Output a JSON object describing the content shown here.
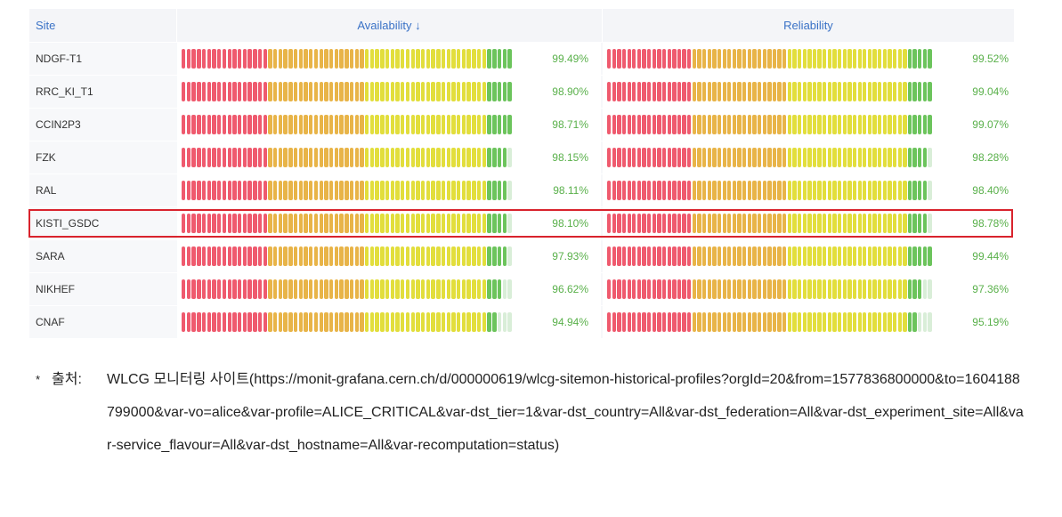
{
  "table": {
    "headers": {
      "site": "Site",
      "availability": "Availability",
      "sort_arrow": "↓",
      "reliability": "Reliability"
    },
    "colors": {
      "red": "#ef5a6e",
      "orange": "#e8b448",
      "yellow": "#e2de3c",
      "green": "#6cc45c",
      "empty": "#d9eed8",
      "value": "#59b04a",
      "highlight": "#d9232d",
      "header_text": "#3a72c6"
    },
    "rows": [
      {
        "site": "NDGF-T1",
        "availability": "99.49%",
        "reliability": "99.52%",
        "av_fill": 1.0,
        "re_fill": 1.0
      },
      {
        "site": "RRC_KI_T1",
        "availability": "98.90%",
        "reliability": "99.04%",
        "av_fill": 1.0,
        "re_fill": 1.0
      },
      {
        "site": "CCIN2P3",
        "availability": "98.71%",
        "reliability": "99.07%",
        "av_fill": 1.0,
        "re_fill": 1.0
      },
      {
        "site": "FZK",
        "availability": "98.15%",
        "reliability": "98.28%",
        "av_fill": 0.98,
        "re_fill": 0.98
      },
      {
        "site": "RAL",
        "availability": "98.11%",
        "reliability": "98.40%",
        "av_fill": 0.98,
        "re_fill": 0.98
      },
      {
        "site": "KISTI_GSDC",
        "availability": "98.10%",
        "reliability": "98.78%",
        "av_fill": 0.98,
        "re_fill": 0.98,
        "highlighted": true
      },
      {
        "site": "SARA",
        "availability": "97.93%",
        "reliability": "99.44%",
        "av_fill": 0.98,
        "re_fill": 1.0
      },
      {
        "site": "NIKHEF",
        "availability": "96.62%",
        "reliability": "97.36%",
        "av_fill": 0.97,
        "re_fill": 0.97
      },
      {
        "site": "CNAF",
        "availability": "94.94%",
        "reliability": "95.19%",
        "av_fill": 0.95,
        "re_fill": 0.95
      }
    ]
  },
  "note": {
    "star": "*",
    "label": "출처:",
    "text": "WLCG 모니터링 사이트(https://monit-grafana.cern.ch/d/000000619/wlcg-sitemon-historical-profiles?orgId=20&from=1577836800000&to=1604188799000&var-vo=alice&var-profile=ALICE_CRITICAL&var-dst_tier=1&var-dst_country=All&var-dst_federation=All&var-dst_experiment_site=All&var-service_flavour=All&var-dst_hostname=All&var-recomputation=status)"
  }
}
